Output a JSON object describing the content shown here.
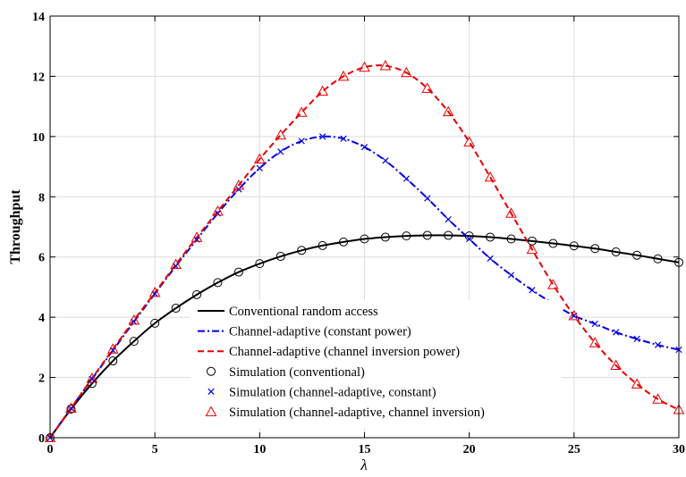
{
  "chart_data": {
    "type": "line",
    "title": "",
    "xlabel": "λ",
    "ylabel": "Throughput",
    "xlim": [
      0,
      30
    ],
    "ylim": [
      0,
      14
    ],
    "xticks": [
      0,
      5,
      10,
      15,
      20,
      25,
      30
    ],
    "yticks": [
      0,
      2,
      4,
      6,
      8,
      10,
      12,
      14
    ],
    "grid": true,
    "legend_position": "bottom-center",
    "series": [
      {
        "name": "Conventional random access",
        "kind": "line",
        "color": "#000000",
        "dash": "solid",
        "x": [
          0,
          1,
          2,
          3,
          4,
          5,
          6,
          7,
          8,
          9,
          10,
          11,
          12,
          13,
          14,
          15,
          16,
          17,
          18,
          19,
          20,
          21,
          22,
          23,
          24,
          25,
          26,
          27,
          28,
          29,
          30
        ],
        "values": [
          0,
          0.95,
          1.8,
          2.55,
          3.2,
          3.8,
          4.3,
          4.75,
          5.15,
          5.5,
          5.78,
          6.02,
          6.22,
          6.38,
          6.5,
          6.6,
          6.66,
          6.7,
          6.72,
          6.72,
          6.7,
          6.66,
          6.6,
          6.53,
          6.45,
          6.37,
          6.28,
          6.17,
          6.06,
          5.94,
          5.82
        ]
      },
      {
        "name": "Channel-adaptive (constant power)",
        "kind": "line",
        "color": "#0000e6",
        "dash": "dashdot",
        "x": [
          0,
          1,
          2,
          3,
          4,
          5,
          6,
          7,
          8,
          9,
          10,
          11,
          12,
          13,
          14,
          15,
          16,
          17,
          18,
          19,
          20,
          21,
          22,
          23,
          24,
          25,
          26,
          27,
          28,
          29,
          30
        ],
        "values": [
          0,
          0.98,
          1.95,
          2.9,
          3.85,
          4.78,
          5.7,
          6.58,
          7.45,
          8.25,
          8.95,
          9.5,
          9.85,
          10.0,
          9.93,
          9.65,
          9.2,
          8.6,
          7.95,
          7.25,
          6.6,
          5.95,
          5.4,
          4.9,
          4.45,
          4.05,
          3.78,
          3.5,
          3.28,
          3.08,
          2.92
        ]
      },
      {
        "name": "Channel-adaptive (channel inversion power)",
        "kind": "line",
        "color": "#e60000",
        "dash": "dashed",
        "x": [
          0,
          1,
          2,
          3,
          4,
          5,
          6,
          7,
          8,
          9,
          10,
          11,
          12,
          13,
          14,
          15,
          16,
          17,
          18,
          19,
          20,
          21,
          22,
          23,
          24,
          25,
          26,
          27,
          28,
          29,
          30
        ],
        "values": [
          0,
          0.98,
          1.97,
          2.94,
          3.9,
          4.82,
          5.75,
          6.65,
          7.52,
          8.38,
          9.25,
          10.05,
          10.8,
          11.5,
          12.0,
          12.3,
          12.35,
          12.12,
          11.6,
          10.82,
          9.82,
          8.65,
          7.45,
          6.25,
          5.08,
          4.05,
          3.15,
          2.4,
          1.78,
          1.28,
          0.93
        ]
      },
      {
        "name": "Simulation (conventional)",
        "kind": "marker",
        "marker": "circle",
        "color": "#000000",
        "x": [
          0,
          1,
          2,
          3,
          4,
          5,
          6,
          7,
          8,
          9,
          10,
          11,
          12,
          13,
          14,
          15,
          16,
          17,
          18,
          19,
          20,
          21,
          22,
          23,
          24,
          25,
          26,
          27,
          28,
          29,
          30
        ],
        "values": [
          0,
          0.95,
          1.8,
          2.55,
          3.2,
          3.8,
          4.3,
          4.75,
          5.15,
          5.5,
          5.78,
          6.02,
          6.22,
          6.38,
          6.5,
          6.6,
          6.66,
          6.7,
          6.72,
          6.72,
          6.7,
          6.66,
          6.6,
          6.53,
          6.45,
          6.37,
          6.28,
          6.17,
          6.06,
          5.94,
          5.82
        ]
      },
      {
        "name": "Simulation (channel-adaptive, constant)",
        "kind": "marker",
        "marker": "x",
        "color": "#0000e6",
        "x": [
          0,
          1,
          2,
          3,
          4,
          5,
          6,
          7,
          8,
          9,
          10,
          11,
          12,
          13,
          14,
          15,
          16,
          17,
          18,
          19,
          20,
          21,
          22,
          23,
          24,
          25,
          26,
          27,
          28,
          29,
          30
        ],
        "values": [
          0,
          0.98,
          1.95,
          2.9,
          3.85,
          4.78,
          5.7,
          6.58,
          7.45,
          8.25,
          8.95,
          9.5,
          9.85,
          10.0,
          9.93,
          9.65,
          9.2,
          8.6,
          7.95,
          7.25,
          6.6,
          5.95,
          5.4,
          4.9,
          4.45,
          4.05,
          3.78,
          3.5,
          3.28,
          3.08,
          2.92
        ]
      },
      {
        "name": "Simulation (channel-adaptive, channel inversion)",
        "kind": "marker",
        "marker": "triangle",
        "color": "#e60000",
        "x": [
          0,
          1,
          2,
          3,
          4,
          5,
          6,
          7,
          8,
          9,
          10,
          11,
          12,
          13,
          14,
          15,
          16,
          17,
          18,
          19,
          20,
          21,
          22,
          23,
          24,
          25,
          26,
          27,
          28,
          29,
          30
        ],
        "values": [
          0,
          0.98,
          1.97,
          2.94,
          3.9,
          4.82,
          5.75,
          6.65,
          7.52,
          8.38,
          9.25,
          10.05,
          10.8,
          11.5,
          12.0,
          12.3,
          12.35,
          12.12,
          11.6,
          10.82,
          9.82,
          8.65,
          7.45,
          6.25,
          5.08,
          4.05,
          3.15,
          2.4,
          1.78,
          1.28,
          0.93
        ]
      }
    ]
  }
}
